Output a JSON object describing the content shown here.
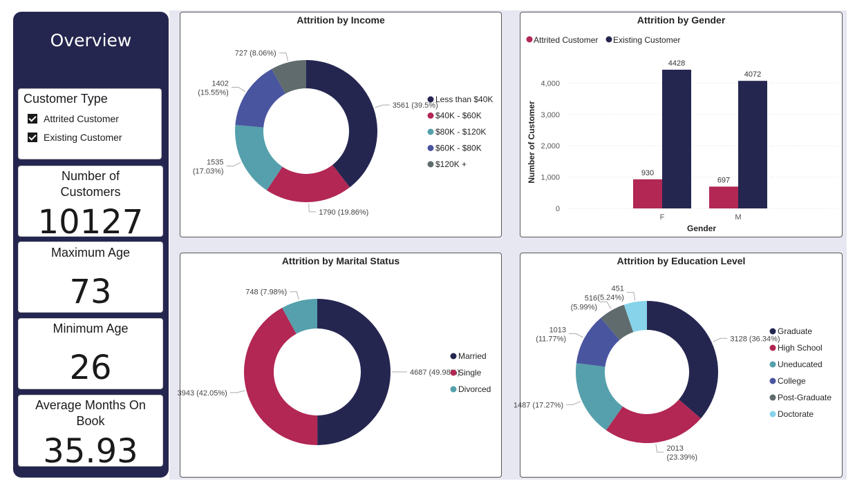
{
  "sidebar": {
    "title": "Overview",
    "slicer": {
      "title": "Customer Type",
      "items": [
        "Attrited Customer",
        "Existing Customer"
      ]
    },
    "cards": [
      {
        "label": "Number of Customers",
        "value": "10127"
      },
      {
        "label": "Maximum Age",
        "value": "73"
      },
      {
        "label": "Minimum Age",
        "value": "26"
      },
      {
        "label": "Average Months On Book",
        "value": "35.93"
      }
    ]
  },
  "colors": {
    "sidebar": "#25264f",
    "navy": "#252650",
    "crimson": "#b22753",
    "teal": "#55a0ac",
    "blue": "#4a55a0",
    "gray": "#5f6b6d",
    "lightblue": "#86d3ea"
  },
  "chart_data": [
    {
      "type": "pie",
      "title": "Attrition by Income",
      "labels": [
        "Less than $40K",
        "$40K - $60K",
        "$80K - $120K",
        "$60K - $80K",
        "$120K +"
      ],
      "values": [
        3561,
        1790,
        1535,
        1402,
        727
      ],
      "data_labels": [
        "3561 (39.5%)",
        "1790 (19.86%)",
        "1535 (17.03%)",
        "1402 (15.55%)",
        "727 (8.06%)"
      ],
      "colors": [
        "#252650",
        "#b22753",
        "#55a0ac",
        "#4a55a0",
        "#5f6b6d"
      ],
      "donut": true,
      "legend": "right"
    },
    {
      "type": "bar",
      "title": "Attrition by Gender",
      "categories": [
        "F",
        "M"
      ],
      "series": [
        {
          "name": "Attrited Customer",
          "values": [
            930,
            697
          ],
          "color": "#b22753"
        },
        {
          "name": "Existing Customer",
          "values": [
            4428,
            4072
          ],
          "color": "#252650"
        }
      ],
      "xlabel": "Gender",
      "ylabel": "Number of Customer",
      "ylim": [
        0,
        4800
      ],
      "yticks": [
        "0",
        "1,000",
        "2,000",
        "3,000",
        "4,000"
      ],
      "grid": true,
      "legend": "top-left"
    },
    {
      "type": "pie",
      "title": "Attrition by Marital Status",
      "labels": [
        "Married",
        "Single",
        "Divorced"
      ],
      "values": [
        4687,
        3943,
        748
      ],
      "data_labels": [
        "4687 (49.98%)",
        "3943 (42.05%)",
        "748 (7.98%)"
      ],
      "colors": [
        "#252650",
        "#b22753",
        "#55a0ac"
      ],
      "donut": true,
      "legend": "right"
    },
    {
      "type": "pie",
      "title": "Attrition by Education Level",
      "labels": [
        "Graduate",
        "High School",
        "Uneducated",
        "College",
        "Post-Graduate",
        "Doctorate"
      ],
      "values": [
        3128,
        2013,
        1487,
        1013,
        516,
        451
      ],
      "data_labels": [
        "3128 (36.34%)",
        "2013 (23.39%)",
        "1487 (17.27%)",
        "1013 (11.77%)",
        "516 (5.99%)",
        "451 (5.24%)"
      ],
      "colors": [
        "#252650",
        "#b22753",
        "#55a0ac",
        "#4a55a0",
        "#5f6b6d",
        "#86d3ea"
      ],
      "donut": true,
      "legend": "right"
    }
  ]
}
